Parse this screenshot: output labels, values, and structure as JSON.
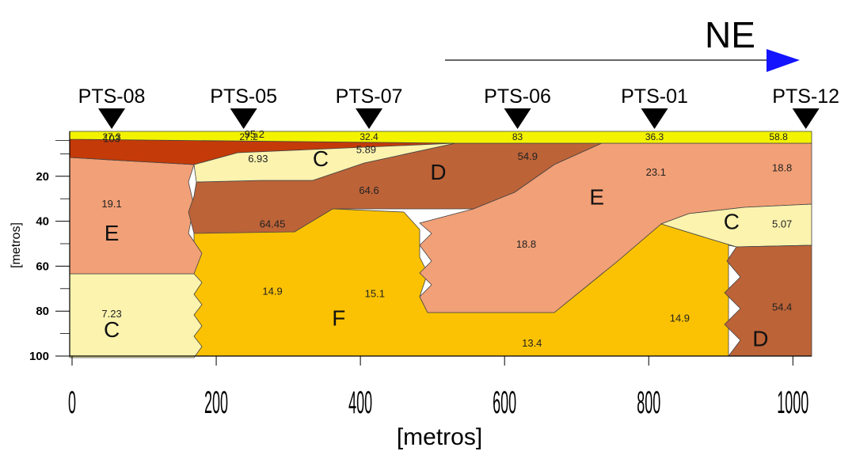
{
  "direction": {
    "label": "NE",
    "arrow_color": "#1414ff"
  },
  "stations": [
    {
      "name": "PTS-08",
      "x": 55
    },
    {
      "name": "PTS-05",
      "x": 238
    },
    {
      "name": "PTS-07",
      "x": 412
    },
    {
      "name": "PTS-06",
      "x": 618
    },
    {
      "name": "PTS-01",
      "x": 808
    },
    {
      "name": "PTS-12",
      "x": 1018
    }
  ],
  "axes": {
    "x_title": "[metros]",
    "y_title": "[metros]",
    "x_ticks": [
      0,
      200,
      400,
      600,
      800,
      1000
    ],
    "y_ticks": [
      20,
      40,
      60,
      80,
      100
    ],
    "x_range": [
      0,
      1020
    ],
    "y_range": [
      0,
      100
    ]
  },
  "colors": {
    "surface": "#f3f300",
    "unit_C": "#fbf3ae",
    "unit_D": "#bc6338",
    "unit_E": "#f2a077",
    "unit_F": "#fbc203",
    "top_red": "#c43a08"
  },
  "units": [
    {
      "label": "E",
      "x": 55,
      "y": 45
    },
    {
      "label": "C",
      "x": 55,
      "y": 88
    },
    {
      "label": "C",
      "x": 345,
      "y": 12
    },
    {
      "label": "D",
      "x": 508,
      "y": 18
    },
    {
      "label": "E",
      "x": 728,
      "y": 29
    },
    {
      "label": "F",
      "x": 370,
      "y": 83
    },
    {
      "label": "C",
      "x": 915,
      "y": 40
    },
    {
      "label": "D",
      "x": 955,
      "y": 92
    }
  ],
  "values": [
    {
      "text": "27.3",
      "x": 55,
      "y": -2
    },
    {
      "text": "27.2",
      "x": 245,
      "y": -2
    },
    {
      "text": "32.4",
      "x": 412,
      "y": -2
    },
    {
      "text": "83",
      "x": 618,
      "y": -2
    },
    {
      "text": "36.3",
      "x": 808,
      "y": -2
    },
    {
      "text": "58.8",
      "x": 980,
      "y": -2
    },
    {
      "text": "103",
      "x": 55,
      "y": 3
    },
    {
      "text": "95.2",
      "x": 253,
      "y": 1
    },
    {
      "text": "6.93",
      "x": 258,
      "y": 12
    },
    {
      "text": "5.89",
      "x": 408,
      "y": 8
    },
    {
      "text": "54.9",
      "x": 632,
      "y": 11
    },
    {
      "text": "23.1",
      "x": 810,
      "y": 18
    },
    {
      "text": "18.8",
      "x": 985,
      "y": 16
    },
    {
      "text": "19.1",
      "x": 55,
      "y": 32
    },
    {
      "text": "64.6",
      "x": 412,
      "y": 26
    },
    {
      "text": "64.45",
      "x": 278,
      "y": 41
    },
    {
      "text": "5.07",
      "x": 985,
      "y": 41
    },
    {
      "text": "18.8",
      "x": 630,
      "y": 50
    },
    {
      "text": "14.9",
      "x": 278,
      "y": 71
    },
    {
      "text": "15.1",
      "x": 420,
      "y": 72
    },
    {
      "text": "7.23",
      "x": 55,
      "y": 81
    },
    {
      "text": "14.9",
      "x": 843,
      "y": 83
    },
    {
      "text": "54.4",
      "x": 985,
      "y": 78
    },
    {
      "text": "13.4",
      "x": 638,
      "y": 94
    }
  ]
}
